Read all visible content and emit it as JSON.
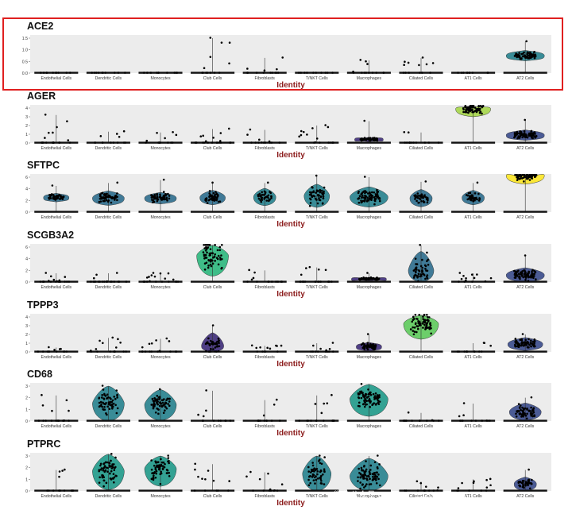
{
  "watermark": "微信公众号 Outdata · 15202039213",
  "categories": [
    "Endothelial Cells",
    "Dendritic Cells",
    "Monocytes",
    "Club Cells",
    "Fibroblasts",
    "T/NKT Cells",
    "Macrophages",
    "Ciliated Cells",
    "AT1 Cells",
    "AT2 Cells"
  ],
  "highlight_color": "#e02020",
  "chart_data": [
    {
      "type": "violin",
      "title": "ACE2",
      "xlabel": "Identity",
      "ylabel": "",
      "ylim": [
        0,
        1.5
      ],
      "yticks": [
        "0.0",
        "0.5",
        "1.0",
        "1.5"
      ],
      "categories": [
        "Endothelial Cells",
        "Dendritic Cells",
        "Monocytes",
        "Club Cells",
        "Fibroblasts",
        "T/NKT Cells",
        "Macrophages",
        "Ciliated Cells",
        "AT1 Cells",
        "AT2 Cells"
      ],
      "max": [
        0,
        0,
        0,
        1.5,
        0.65,
        0,
        0.55,
        0.65,
        0,
        1.35
      ],
      "spread": [
        0,
        0,
        0,
        0,
        0,
        0,
        0,
        0,
        0,
        0.45
      ],
      "center": [
        0,
        0,
        0,
        0,
        0,
        0,
        0,
        0,
        0,
        0.75
      ],
      "density": [
        0.05,
        0.05,
        0.05,
        0.1,
        0.1,
        0.05,
        0.1,
        0.1,
        0.05,
        1
      ],
      "highlighted": true
    },
    {
      "type": "violin",
      "title": "AGER",
      "xlabel": "Identity",
      "ylabel": "",
      "ylim": [
        0,
        4
      ],
      "yticks": [
        "0",
        "1",
        "2",
        "3",
        "4"
      ],
      "categories": [
        "Endothelial Cells",
        "Dendritic Cells",
        "Monocytes",
        "Club Cells",
        "Fibroblasts",
        "T/NKT Cells",
        "Macrophages",
        "Ciliated Cells",
        "AT1 Cells",
        "AT2 Cells"
      ],
      "max": [
        3.2,
        1.3,
        1.2,
        1.6,
        1.5,
        2.0,
        2.5,
        1.2,
        4.4,
        2.6
      ],
      "spread": [
        0,
        0,
        0,
        0,
        0,
        0,
        0.5,
        0,
        1.8,
        1.2
      ],
      "center": [
        0,
        0,
        0,
        0,
        0,
        0,
        0.4,
        0,
        3.9,
        0.9
      ],
      "density": [
        0.2,
        0.1,
        0.1,
        0.2,
        0.1,
        0.15,
        0.7,
        0.1,
        0.9,
        1
      ]
    },
    {
      "type": "violin",
      "title": "SFTPC",
      "xlabel": "Identity",
      "ylabel": "",
      "ylim": [
        0,
        6
      ],
      "yticks": [
        "0",
        "2",
        "4",
        "6"
      ],
      "categories": [
        "Endothelial Cells",
        "Dendritic Cells",
        "Monocytes",
        "Club Cells",
        "Fibroblasts",
        "T/NKT Cells",
        "Macrophages",
        "Ciliated Cells",
        "AT1 Cells",
        "AT2 Cells"
      ],
      "max": [
        4.5,
        5.0,
        5.5,
        5.0,
        5.0,
        6.2,
        6.0,
        5.2,
        5.0,
        7.2
      ],
      "spread": [
        1.5,
        2.5,
        2.0,
        2.5,
        3.0,
        4.0,
        3.5,
        3.0,
        2.5,
        3.0
      ],
      "center": [
        2.5,
        2.4,
        2.4,
        2.5,
        2.6,
        2.8,
        2.6,
        2.4,
        2.5,
        6.3
      ],
      "density": [
        0.6,
        0.8,
        0.8,
        0.6,
        0.5,
        0.6,
        1,
        0.5,
        0.5,
        1
      ]
    },
    {
      "type": "violin",
      "title": "SCGB3A2",
      "xlabel": "Identity",
      "ylabel": "",
      "ylim": [
        0,
        6
      ],
      "yticks": [
        "0",
        "2",
        "4",
        "6"
      ],
      "categories": [
        "Endothelial Cells",
        "Dendritic Cells",
        "Monocytes",
        "Club Cells",
        "Fibroblasts",
        "T/NKT Cells",
        "Macrophages",
        "Ciliated Cells",
        "AT1 Cells",
        "AT2 Cells"
      ],
      "max": [
        1.5,
        1.5,
        1.5,
        7.0,
        2.0,
        2.5,
        1.5,
        6.8,
        1.5,
        4.5
      ],
      "spread": [
        0,
        0,
        0,
        7.0,
        0,
        0,
        0.6,
        6.5,
        0,
        2.5
      ],
      "center": [
        0,
        0,
        0,
        4.5,
        0,
        0,
        0.5,
        2.0,
        0,
        1.2
      ],
      "density": [
        0.2,
        0.2,
        0.2,
        0.8,
        0.1,
        0.2,
        0.9,
        0.6,
        0.1,
        1
      ]
    },
    {
      "type": "violin",
      "title": "TPPP3",
      "xlabel": "Identity",
      "ylabel": "",
      "ylim": [
        0,
        4
      ],
      "yticks": [
        "0",
        "1",
        "2",
        "3",
        "4"
      ],
      "categories": [
        "Endothelial Cells",
        "Dendritic Cells",
        "Monocytes",
        "Club Cells",
        "Fibroblasts",
        "T/NKT Cells",
        "Macrophages",
        "Ciliated Cells",
        "AT1 Cells",
        "AT2 Cells"
      ],
      "max": [
        0.5,
        1.6,
        1.5,
        3.0,
        0.7,
        1.0,
        2.0,
        4.6,
        1.0,
        2.0
      ],
      "spread": [
        0,
        0,
        0,
        3.0,
        0,
        0,
        1.0,
        3.5,
        0,
        1.5
      ],
      "center": [
        0,
        0,
        0,
        0.7,
        0,
        0,
        0.6,
        3.2,
        0,
        0.9
      ],
      "density": [
        0.1,
        0.15,
        0.15,
        0.5,
        0.1,
        0.1,
        0.6,
        0.9,
        0.1,
        0.9
      ]
    },
    {
      "type": "violin",
      "title": "CD68",
      "xlabel": "Identity",
      "ylabel": "",
      "ylim": [
        0,
        3
      ],
      "yticks": [
        "0",
        "1",
        "2",
        "3"
      ],
      "categories": [
        "Endothelial Cells",
        "Dendritic Cells",
        "Monocytes",
        "Club Cells",
        "Fibroblasts",
        "T/NKT Cells",
        "Macrophages",
        "Ciliated Cells",
        "AT1 Cells",
        "AT2 Cells"
      ],
      "max": [
        2.2,
        3.0,
        2.7,
        2.6,
        1.8,
        2.2,
        3.2,
        0.7,
        1.5,
        2.0
      ],
      "spread": [
        0,
        3.0,
        2.7,
        0,
        0,
        0,
        3.0,
        0,
        0,
        1.5
      ],
      "center": [
        0,
        1.5,
        1.4,
        0,
        0,
        0,
        1.9,
        0,
        0,
        0.8
      ],
      "density": [
        0.15,
        0.8,
        0.8,
        0.1,
        0.1,
        0.15,
        1,
        0.1,
        0.1,
        0.8
      ]
    },
    {
      "type": "violin",
      "title": "PTPRC",
      "xlabel": "Identity",
      "ylabel": "",
      "ylim": [
        0,
        3
      ],
      "yticks": [
        "0",
        "1",
        "2",
        "3"
      ],
      "categories": [
        "Endothelial Cells",
        "Dendritic Cells",
        "Monocytes",
        "Club Cells",
        "Fibroblasts",
        "T/NKT Cells",
        "Macrophages",
        "Ciliated Cells",
        "AT1 Cells",
        "AT2 Cells"
      ],
      "max": [
        1.8,
        3.2,
        3.0,
        2.3,
        1.6,
        3.0,
        3.0,
        0.8,
        1.0,
        1.8
      ],
      "spread": [
        0,
        3.2,
        3.0,
        0,
        0,
        3.0,
        3.0,
        0,
        0,
        1.2
      ],
      "center": [
        0,
        1.7,
        1.9,
        0,
        0,
        1.5,
        1.3,
        0,
        0,
        0.6
      ],
      "density": [
        0.1,
        0.8,
        0.8,
        0.1,
        0.1,
        0.7,
        1,
        0.1,
        0.1,
        0.5
      ]
    }
  ]
}
